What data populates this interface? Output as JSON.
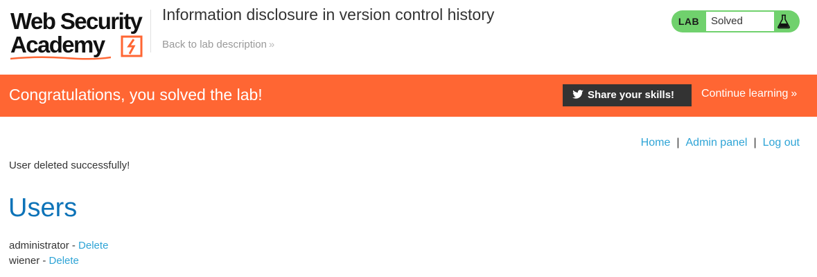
{
  "header": {
    "logo": {
      "line1": "Web Security",
      "line2": "Academy"
    },
    "lab_title": "Information disclosure in version control history",
    "back_link": "Back to lab description",
    "status": {
      "lab_label": "LAB",
      "value": "Solved"
    }
  },
  "banner": {
    "message": "Congratulations, you solved the lab!",
    "share_label": "Share your skills!",
    "continue_label": "Continue learning"
  },
  "nav": {
    "items": [
      "Home",
      "Admin panel",
      "Log out"
    ],
    "separator": "|"
  },
  "main": {
    "message": "User deleted successfully!",
    "heading": "Users",
    "users": [
      {
        "name": "administrator",
        "separator": " - ",
        "action": "Delete"
      },
      {
        "name": "wiener",
        "separator": " - ",
        "action": "Delete"
      }
    ]
  },
  "colors": {
    "accent_orange": "#ff6633",
    "solved_green": "#70d16d",
    "link_blue": "#2ea4d6",
    "heading_blue": "#0d73b8"
  },
  "icons": {
    "logo_mark": "lightning-bolt-icon",
    "flask": "flask-icon",
    "twitter": "twitter-bird-icon",
    "chevron": "double-chevron-right-icon"
  }
}
